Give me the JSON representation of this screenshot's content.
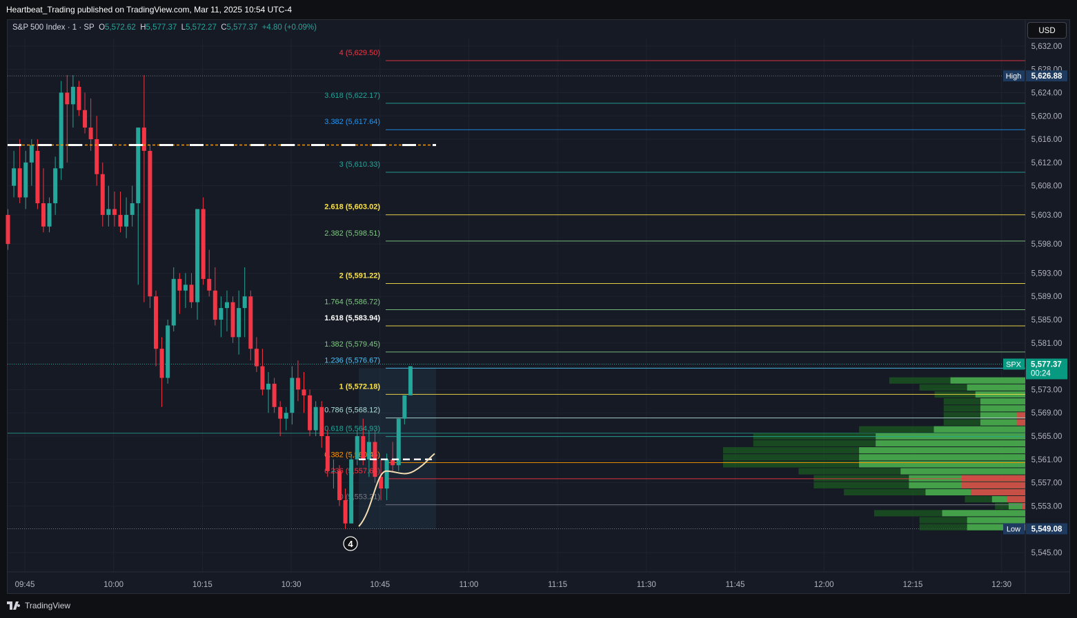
{
  "publisher": "Heartbeat_Trading published on TradingView.com, Mar 11, 2025 10:54 UTC-4",
  "legend": {
    "symbol": "S&P 500 Index · 1 · SP",
    "open_label": "O",
    "open": "5,572.62",
    "high_label": "H",
    "high": "5,577.37",
    "low_label": "L",
    "low": "5,572.27",
    "close_label": "C",
    "close": "5,577.37",
    "change": "+4.80 (+0.09%)"
  },
  "currency_button": "USD",
  "footer_brand": "TradingView",
  "colors": {
    "up": "#26a69a",
    "down": "#f23645",
    "background": "#161a25",
    "grid": "#1f2330"
  },
  "chart_data": {
    "type": "candlestick",
    "price_axis": {
      "ticks": [
        "5,632.00",
        "5,628.00",
        "5,624.00",
        "5,620.00",
        "5,616.00",
        "5,612.00",
        "5,608.00",
        "5,603.00",
        "5,598.00",
        "5,593.00",
        "5,589.00",
        "5,585.00",
        "5,581.00",
        "5,573.00",
        "5,569.00",
        "5,565.00",
        "5,561.00",
        "5,557.00",
        "5,553.00",
        "5,545.00"
      ],
      "ylim": [
        5543,
        5634
      ]
    },
    "time_axis": {
      "ticks": [
        "09:45",
        "10:00",
        "10:15",
        "10:30",
        "10:45",
        "11:00",
        "11:15",
        "11:30",
        "11:45",
        "12:00",
        "12:15",
        "12:30"
      ]
    },
    "axis_badges": {
      "high": {
        "label": "High",
        "value": "5,626.88",
        "price": 5626.88
      },
      "low": {
        "label": "Low",
        "value": "5,549.08",
        "price": 5549.08
      },
      "last": {
        "label": "SPX",
        "value": "5,577.37",
        "countdown": "00:24",
        "price": 5577.37
      }
    },
    "fib_levels": [
      {
        "label": "4 (5,629.50)",
        "price": 5629.5,
        "color": "#f23645"
      },
      {
        "label": "3.618 (5,622.17)",
        "price": 5622.17,
        "color": "#26a69a"
      },
      {
        "label": "3.382 (5,617.64)",
        "price": 5617.64,
        "color": "#2196f3"
      },
      {
        "label": "3 (5,610.33)",
        "price": 5610.33,
        "color": "#26a69a"
      },
      {
        "label": "2.618 (5,603.02)",
        "price": 5603.02,
        "color": "#fbe34a"
      },
      {
        "label": "2.382 (5,598.51)",
        "price": 5598.51,
        "color": "#81c784"
      },
      {
        "label": "2 (5,591.22)",
        "price": 5591.22,
        "color": "#fbe34a"
      },
      {
        "label": "1.764 (5,586.72)",
        "price": 5586.72,
        "color": "#81c784"
      },
      {
        "label": "1.618 (5,583.94)",
        "price": 5583.94,
        "color": "#fbe34a"
      },
      {
        "label": "1.382 (5,579.45)",
        "price": 5579.45,
        "color": "#81c784"
      },
      {
        "label": "1.236 (5,576.67)",
        "price": 5576.67,
        "color": "#4fc3f7"
      },
      {
        "label": "1 (5,572.18)",
        "price": 5572.18,
        "color": "#fbe34a"
      },
      {
        "label": "0.786 (5,568.12)",
        "price": 5568.12,
        "color": "#b2dfdb"
      },
      {
        "label": "0.618 (5,564.93)",
        "price": 5564.93,
        "color": "#26a69a"
      },
      {
        "label": "0.382 (5,560.45)",
        "price": 5560.45,
        "color": "#ff9800"
      },
      {
        "label": "0.236 (5,557.68)",
        "price": 5557.68,
        "color": "#f23645"
      },
      {
        "label": "0 (5,553.21)",
        "price": 5553.21,
        "color": "#787b86"
      }
    ],
    "wave_label": "4",
    "candles": [
      [
        5603,
        5604,
        5597,
        5598
      ],
      [
        5608,
        5614,
        5606,
        5611
      ],
      [
        5611,
        5616,
        5605,
        5606
      ],
      [
        5606,
        5614,
        5604,
        5612
      ],
      [
        5612,
        5616,
        5608,
        5615
      ],
      [
        5614,
        5616,
        5604,
        5605
      ],
      [
        5605,
        5611,
        5600,
        5601
      ],
      [
        5601,
        5606,
        5600,
        5605
      ],
      [
        5605,
        5613,
        5603,
        5611
      ],
      [
        5611,
        5626,
        5609,
        5624
      ],
      [
        5624,
        5627,
        5612,
        5622
      ],
      [
        5622,
        5627,
        5618,
        5625
      ],
      [
        5625,
        5626,
        5620,
        5621
      ],
      [
        5621,
        5624,
        5617,
        5618
      ],
      [
        5618,
        5623,
        5614,
        5616
      ],
      [
        5616,
        5620,
        5608,
        5610
      ],
      [
        5610,
        5612,
        5601,
        5603
      ],
      [
        5603,
        5608,
        5601,
        5604
      ],
      [
        5604,
        5607,
        5601,
        5603
      ],
      [
        5603,
        5607,
        5600,
        5601
      ],
      [
        5601,
        5606,
        5599,
        5603
      ],
      [
        5603,
        5608,
        5601,
        5605
      ],
      [
        5605,
        5618,
        5591,
        5618
      ],
      [
        5618,
        5627,
        5588,
        5614
      ],
      [
        5614,
        5615,
        5587,
        5589
      ],
      [
        5589,
        5590,
        5577,
        5580
      ],
      [
        5580,
        5582,
        5570,
        5575
      ],
      [
        5575,
        5585,
        5574,
        5584
      ],
      [
        5584,
        5594,
        5583,
        5592
      ],
      [
        5592,
        5593,
        5586,
        5590
      ],
      [
        5590,
        5593,
        5587,
        5591
      ],
      [
        5591,
        5593,
        5587,
        5588
      ],
      [
        5588,
        5604,
        5585,
        5604
      ],
      [
        5604,
        5606,
        5591,
        5592
      ],
      [
        5592,
        5597,
        5589,
        5590
      ],
      [
        5590,
        5594,
        5584,
        5585
      ],
      [
        5585,
        5589,
        5582,
        5587
      ],
      [
        5587,
        5590,
        5583,
        5588
      ],
      [
        5588,
        5589,
        5581,
        5582
      ],
      [
        5582,
        5590,
        5579,
        5587
      ],
      [
        5587,
        5594,
        5582,
        5589
      ],
      [
        5589,
        5590,
        5578,
        5580
      ],
      [
        5580,
        5582,
        5576,
        5577
      ],
      [
        5577,
        5580,
        5572,
        5573
      ],
      [
        5573,
        5576,
        5569,
        5574
      ],
      [
        5574,
        5575,
        5569,
        5570
      ],
      [
        5570,
        5571,
        5565,
        5568
      ],
      [
        5568,
        5570,
        5566,
        5569
      ],
      [
        5569,
        5577,
        5567,
        5575
      ],
      [
        5575,
        5578,
        5571,
        5573
      ],
      [
        5573,
        5576,
        5569,
        5572
      ],
      [
        5572,
        5573,
        5565,
        5566
      ],
      [
        5566,
        5571,
        5565,
        5570
      ],
      [
        5570,
        5571,
        5563,
        5565
      ],
      [
        5565,
        5566,
        5558,
        5559
      ],
      [
        5559,
        5561,
        5556,
        5559
      ],
      [
        5559,
        5560,
        5553,
        5554
      ],
      [
        5554,
        5556,
        5549,
        5550
      ],
      [
        5550,
        5562,
        5550,
        5561
      ],
      [
        5561,
        5566,
        5560,
        5565
      ],
      [
        5565,
        5568,
        5560,
        5561
      ],
      [
        5561,
        5566,
        5558,
        5564
      ],
      [
        5564,
        5566,
        5557,
        5558
      ],
      [
        5558,
        5561,
        5554,
        5556
      ],
      [
        5556,
        5562,
        5554,
        5561
      ],
      [
        5561,
        5564,
        5559,
        5560
      ],
      [
        5560,
        5568,
        5559,
        5568
      ],
      [
        5568,
        5572,
        5567,
        5572
      ],
      [
        5572,
        5577,
        5572,
        5577
      ]
    ]
  }
}
